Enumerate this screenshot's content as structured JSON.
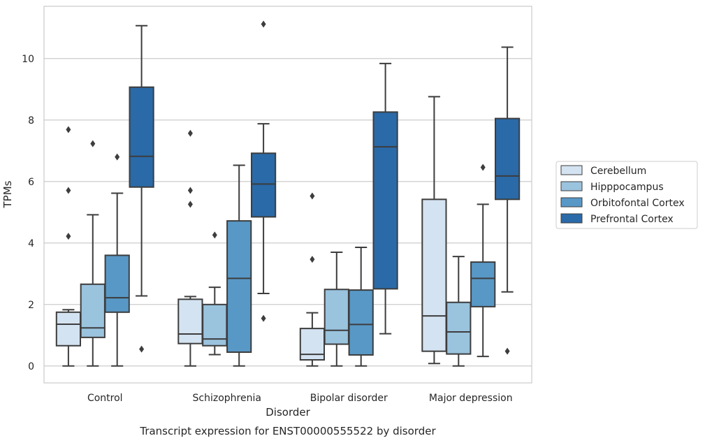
{
  "caption": "Transcript expression for ENST00000555522 by disorder",
  "chart_data": {
    "type": "box",
    "xlabel": "Disorder",
    "ylabel": "TPMs",
    "ylim": [
      -0.55,
      11.7
    ],
    "yticks": [
      0,
      2,
      4,
      6,
      8,
      10
    ],
    "grid": true,
    "legend_position": "right",
    "categories": [
      "Control",
      "Schizophrenia",
      "Bipolar disorder",
      "Major depression"
    ],
    "series": [
      {
        "name": "Cerebellum",
        "color": "#d4e3f1",
        "boxes": [
          {
            "whislo": 0.0,
            "q1": 0.66,
            "med": 1.36,
            "q3": 1.75,
            "whishi": 1.83,
            "fliers": [
              4.22,
              5.71,
              7.69
            ]
          },
          {
            "whislo": 0.0,
            "q1": 0.73,
            "med": 1.04,
            "q3": 2.17,
            "whishi": 2.26,
            "fliers": [
              5.26,
              5.71,
              7.57
            ]
          },
          {
            "whislo": 0.0,
            "q1": 0.2,
            "med": 0.38,
            "q3": 1.22,
            "whishi": 1.73,
            "fliers": [
              3.47,
              5.53
            ]
          },
          {
            "whislo": 0.08,
            "q1": 0.48,
            "med": 1.63,
            "q3": 5.42,
            "whishi": 8.76,
            "fliers": []
          }
        ]
      },
      {
        "name": "Hipppocampus",
        "color": "#9ac3de",
        "boxes": [
          {
            "whislo": 0.0,
            "q1": 0.93,
            "med": 1.24,
            "q3": 2.66,
            "whishi": 4.92,
            "fliers": [
              7.23
            ]
          },
          {
            "whislo": 0.37,
            "q1": 0.66,
            "med": 0.88,
            "q3": 2.0,
            "whishi": 2.56,
            "fliers": [
              4.26
            ]
          },
          {
            "whislo": 0.0,
            "q1": 0.71,
            "med": 1.16,
            "q3": 2.49,
            "whishi": 3.7,
            "fliers": []
          },
          {
            "whislo": 0.0,
            "q1": 0.39,
            "med": 1.11,
            "q3": 2.07,
            "whishi": 3.56,
            "fliers": []
          }
        ]
      },
      {
        "name": "Orbitofontal Cortex",
        "color": "#5898c6",
        "boxes": [
          {
            "whislo": 0.0,
            "q1": 1.75,
            "med": 2.22,
            "q3": 3.6,
            "whishi": 5.62,
            "fliers": [
              6.8
            ]
          },
          {
            "whislo": 0.0,
            "q1": 0.45,
            "med": 2.85,
            "q3": 4.72,
            "whishi": 6.53,
            "fliers": []
          },
          {
            "whislo": 0.0,
            "q1": 0.36,
            "med": 1.35,
            "q3": 2.47,
            "whishi": 3.86,
            "fliers": []
          },
          {
            "whislo": 0.31,
            "q1": 1.93,
            "med": 2.85,
            "q3": 3.38,
            "whishi": 5.26,
            "fliers": [
              6.46
            ]
          }
        ]
      },
      {
        "name": "Prefrontal Cortex",
        "color": "#2a6aa8",
        "boxes": [
          {
            "whislo": 2.28,
            "q1": 5.82,
            "med": 6.82,
            "q3": 9.07,
            "whishi": 11.07,
            "fliers": [
              0.55
            ]
          },
          {
            "whislo": 2.36,
            "q1": 4.85,
            "med": 5.92,
            "q3": 6.92,
            "whishi": 7.88,
            "fliers": [
              1.55,
              11.12
            ]
          },
          {
            "whislo": 1.05,
            "q1": 2.51,
            "med": 7.13,
            "q3": 8.26,
            "whishi": 9.84,
            "fliers": []
          },
          {
            "whislo": 2.41,
            "q1": 5.42,
            "med": 6.18,
            "q3": 8.05,
            "whishi": 10.37,
            "fliers": [
              0.48
            ]
          }
        ]
      }
    ]
  }
}
